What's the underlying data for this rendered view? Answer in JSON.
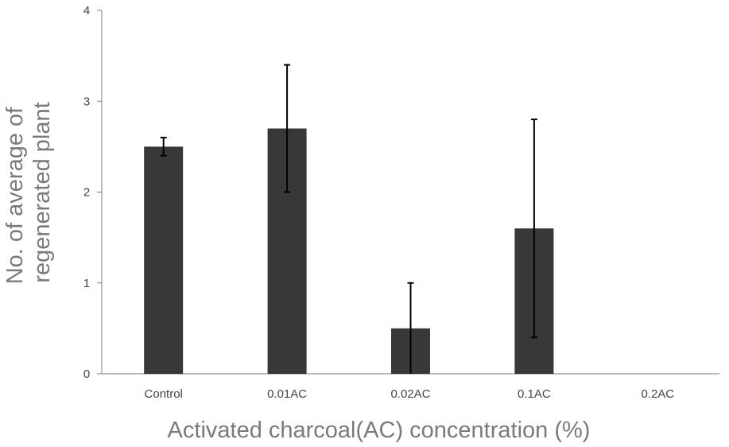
{
  "chart_data": {
    "type": "bar",
    "title": "",
    "xlabel": "Activated charcoal(AC) concentration (%)",
    "ylabel_lines": [
      "No. of average of",
      "regenerated plant"
    ],
    "categories": [
      "Control",
      "0.01AC",
      "0.02AC",
      "0.1AC",
      "0.2AC"
    ],
    "values": [
      2.5,
      2.7,
      0.5,
      1.6,
      0
    ],
    "error_bars": [
      {
        "low": 2.4,
        "high": 2.6
      },
      {
        "low": 2.0,
        "high": 3.4
      },
      {
        "low": 0.0,
        "high": 1.0
      },
      {
        "low": 0.4,
        "high": 2.8
      },
      {
        "low": 0,
        "high": 0
      }
    ],
    "ylim": [
      0,
      4
    ],
    "yticks": [
      "0",
      "1",
      "2",
      "3",
      "4"
    ],
    "grid": false,
    "legend": "none",
    "bar_color": "#383838",
    "error_color": "#000000",
    "axis_color": "#7f7f7f",
    "xlabel_color": "#7a7a7a",
    "tick_color": "#444444"
  }
}
